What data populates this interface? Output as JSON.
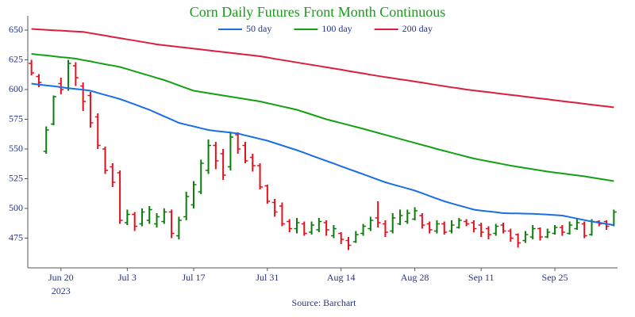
{
  "chart_data": {
    "type": "ohlc",
    "title": "Corn Daily Futures Front Month Continuous",
    "title_color": "#1e9a1e",
    "source": "Source: Barchart",
    "x_year": "2023",
    "categories": [
      null,
      null,
      null,
      null,
      "Jun 20",
      null,
      null,
      null,
      null,
      null,
      null,
      null,
      null,
      "Jul 3",
      null,
      null,
      null,
      null,
      null,
      null,
      null,
      null,
      "Jul 17",
      null,
      null,
      null,
      null,
      null,
      null,
      null,
      null,
      null,
      "Jul 31",
      null,
      null,
      null,
      null,
      null,
      null,
      null,
      null,
      null,
      "Aug 14",
      null,
      null,
      null,
      null,
      null,
      null,
      null,
      null,
      null,
      "Aug 28",
      null,
      null,
      null,
      null,
      null,
      null,
      null,
      null,
      "Sep 11",
      null,
      null,
      null,
      null,
      null,
      null,
      null,
      null,
      null,
      "Sep 25",
      null,
      null,
      null,
      null,
      null,
      null,
      null,
      null
    ],
    "ohlc": {
      "up_color": "#0a7d0a",
      "down_color": "#e3101e",
      "open": [
        622,
        611,
        548,
        571,
        605,
        601,
        620,
        603,
        595,
        577,
        550,
        535,
        530,
        488,
        495,
        487,
        490,
        487,
        489,
        497,
        477,
        493,
        503,
        514,
        532,
        553,
        546,
        535,
        562,
        553,
        543,
        536,
        519,
        505,
        502,
        489,
        483,
        487,
        480,
        482,
        488,
        477,
        479,
        473,
        472,
        479,
        483,
        492,
        487,
        481,
        487,
        489,
        491,
        494,
        487,
        481,
        487,
        481,
        484,
        489,
        488,
        486,
        483,
        479,
        486,
        481,
        478,
        473,
        476,
        483,
        476,
        479,
        484,
        479,
        483,
        487,
        478,
        489,
        489,
        486
      ],
      "high": [
        625,
        613,
        569,
        595,
        610,
        625,
        623,
        606,
        598,
        580,
        552,
        538,
        532,
        499,
        497,
        500,
        502,
        496,
        500,
        499,
        493,
        514,
        523,
        541,
        558,
        556,
        550,
        564,
        564,
        556,
        546,
        538,
        520,
        508,
        505,
        491,
        492,
        489,
        489,
        492,
        490,
        486,
        480,
        476,
        481,
        487,
        493,
        506,
        490,
        496,
        499,
        499,
        501,
        496,
        489,
        490,
        489,
        490,
        492,
        491,
        490,
        488,
        485,
        487,
        488,
        483,
        479,
        481,
        486,
        484,
        483,
        486,
        486,
        489,
        491,
        489,
        491,
        490,
        490,
        499
      ],
      "low": [
        612,
        602,
        546,
        570,
        596,
        599,
        603,
        582,
        568,
        550,
        529,
        518,
        487,
        486,
        481,
        485,
        487,
        484,
        487,
        475,
        474,
        490,
        500,
        512,
        529,
        533,
        524,
        532,
        546,
        538,
        531,
        516,
        504,
        493,
        485,
        480,
        479,
        477,
        478,
        480,
        477,
        475,
        470,
        465,
        471,
        477,
        481,
        484,
        476,
        479,
        486,
        487,
        490,
        483,
        479,
        479,
        478,
        479,
        483,
        485,
        480,
        476,
        474,
        477,
        479,
        472,
        467,
        471,
        474,
        473,
        475,
        478,
        477,
        478,
        482,
        475,
        477,
        485,
        482,
        485
      ],
      "close": [
        614,
        606,
        566,
        594,
        600,
        622,
        610,
        590,
        572,
        553,
        532,
        522,
        490,
        495,
        485,
        497,
        499,
        493,
        497,
        479,
        490,
        510,
        520,
        538,
        553,
        540,
        528,
        560,
        550,
        540,
        536,
        518,
        506,
        497,
        487,
        483,
        488,
        479,
        486,
        489,
        482,
        483,
        474,
        469,
        478,
        485,
        490,
        488,
        480,
        492,
        494,
        496,
        498,
        486,
        482,
        487,
        480,
        486,
        490,
        487,
        483,
        480,
        478,
        485,
        481,
        475,
        471,
        478,
        483,
        476,
        480,
        484,
        480,
        486,
        488,
        477,
        489,
        487,
        485,
        497
      ]
    },
    "series": [
      {
        "name": "50 day",
        "color": "#1a6ee6",
        "values": [
          605,
          604.2,
          603.5,
          602.8,
          602,
          601.2,
          600.5,
          599.8,
          599,
          597.2,
          595.5,
          593.8,
          592,
          589.8,
          587.5,
          585.2,
          583,
          580.2,
          577.5,
          574.8,
          572,
          570.5,
          569,
          567.5,
          566,
          565.2,
          564.5,
          563.8,
          563,
          561.5,
          560,
          558.5,
          557,
          555,
          553,
          551,
          549,
          546.8,
          544.5,
          542.2,
          540,
          537.8,
          535.5,
          533.2,
          531,
          528.8,
          526.5,
          524.2,
          522,
          520.2,
          518.5,
          516.8,
          515,
          512.8,
          510.5,
          508.2,
          506,
          504.2,
          502.5,
          500.8,
          499,
          498.2,
          497.5,
          496.8,
          496,
          495.9,
          495.8,
          495.6,
          495.5,
          495.1,
          494.8,
          494.4,
          494,
          492.8,
          491.5,
          490.2,
          489,
          488,
          487,
          486
        ]
      },
      {
        "name": "100 day",
        "color": "#14a014",
        "values": [
          630,
          629.3,
          628.7,
          628,
          627.3,
          626.7,
          626,
          624.8,
          623.7,
          622.5,
          621.3,
          620.2,
          619,
          617.2,
          615.3,
          613.5,
          611.7,
          609.8,
          608,
          605.8,
          603.5,
          601.2,
          599,
          598,
          597,
          596,
          595,
          594,
          593,
          592,
          591,
          590,
          588.6,
          587.2,
          585.8,
          584.4,
          583,
          581,
          579,
          577,
          575,
          573.4,
          571.8,
          570.2,
          568.6,
          567,
          565.3,
          563.6,
          561.9,
          560.2,
          558.5,
          556.8,
          555.1,
          553.4,
          551.7,
          550,
          548.4,
          546.8,
          545.2,
          543.6,
          542,
          540.8,
          539.6,
          538.4,
          537.2,
          536,
          535,
          534,
          533,
          532,
          531,
          530.2,
          529.4,
          528.6,
          527.8,
          527,
          526,
          525,
          524,
          523
        ]
      },
      {
        "name": "200 day",
        "color": "#dc1e3c",
        "values": [
          651,
          650.6,
          650.3,
          649.9,
          649.6,
          649.2,
          648.9,
          648.5,
          647.5,
          646.4,
          645.4,
          644.3,
          643.3,
          642.2,
          641.2,
          640.1,
          639.1,
          638,
          637.3,
          636.6,
          635.9,
          635.1,
          634.4,
          633.7,
          633,
          632.3,
          631.6,
          630.9,
          630.1,
          629.4,
          628.7,
          628,
          627,
          625.9,
          624.9,
          623.9,
          622.8,
          621.8,
          620.8,
          619.8,
          618.7,
          617.7,
          616.7,
          615.6,
          614.6,
          613.6,
          612.5,
          611.5,
          610.5,
          609.6,
          608.6,
          607.7,
          606.7,
          605.8,
          604.8,
          603.8,
          602.9,
          601.9,
          601,
          600,
          599.3,
          598.5,
          597.8,
          597,
          596.3,
          595.5,
          594.8,
          594,
          593.3,
          592.5,
          591.8,
          591,
          590.3,
          589.5,
          588.8,
          588,
          587.3,
          586.5,
          585.8,
          585
        ]
      }
    ],
    "ylim": [
      450,
      662
    ],
    "yticks": [
      475,
      500,
      525,
      550,
      575,
      600,
      625,
      650
    ],
    "grid": false,
    "legend_position": "top"
  }
}
